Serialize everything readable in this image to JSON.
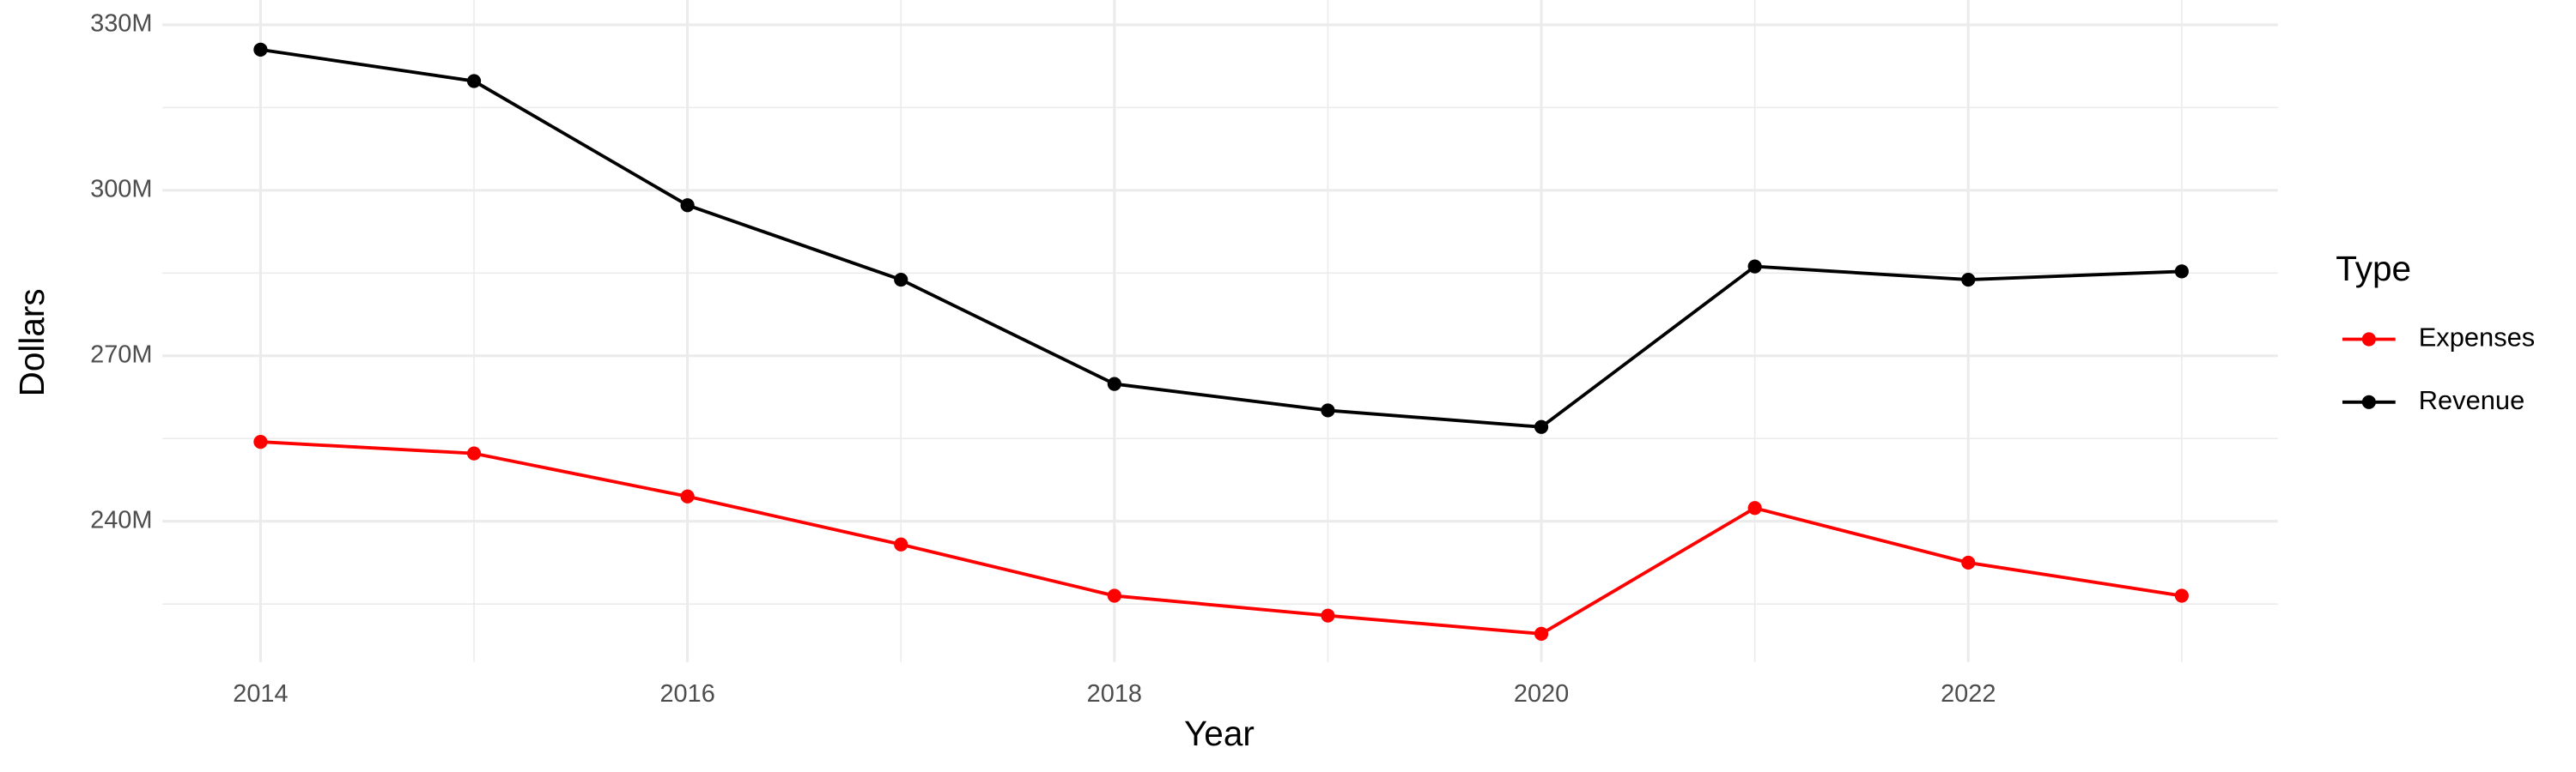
{
  "chart_data": {
    "type": "line",
    "x_label": "Year",
    "y_label": "Dollars",
    "legend_title": "Type",
    "legend_position": "right",
    "grid": true,
    "x": [
      2014,
      2015,
      2016,
      2017,
      2018,
      2019,
      2020,
      2021,
      2022,
      2023
    ],
    "xlim": [
      2013.54,
      2023.45
    ],
    "xticks": [
      2014,
      2016,
      2018,
      2020,
      2022
    ],
    "ylim": [
      214500000,
      334500000
    ],
    "yticks": [
      {
        "value": 240000000,
        "label": "240M"
      },
      {
        "value": 270000000,
        "label": "270M"
      },
      {
        "value": 300000000,
        "label": "300M"
      },
      {
        "value": 330000000,
        "label": "330M"
      }
    ],
    "series": [
      {
        "name": "Expenses",
        "color": "#ff0000",
        "values": [
          254400000,
          252300000,
          244500000,
          235800000,
          226500000,
          222900000,
          219600000,
          242400000,
          232500000,
          226500000
        ]
      },
      {
        "name": "Revenue",
        "color": "#000000",
        "values": [
          325500000,
          319800000,
          297300000,
          283800000,
          264900000,
          260100000,
          257100000,
          286200000,
          283800000,
          285300000
        ]
      }
    ]
  }
}
